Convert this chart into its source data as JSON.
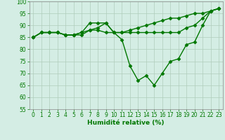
{
  "background_color": "#d4ede4",
  "grid_color": "#b0ccbb",
  "line_color": "#007700",
  "marker": "D",
  "markersize": 2.5,
  "linewidth": 1.0,
  "xlabel": "Humidité relative (%)",
  "xlabel_color": "#007700",
  "xlabel_fontsize": 6.5,
  "tick_color": "#007700",
  "tick_fontsize": 5.5,
  "ylim": [
    55,
    100
  ],
  "xlim": [
    -0.5,
    23.5
  ],
  "yticks": [
    55,
    60,
    65,
    70,
    75,
    80,
    85,
    90,
    95,
    100
  ],
  "xticks": [
    0,
    1,
    2,
    3,
    4,
    5,
    6,
    7,
    8,
    9,
    10,
    11,
    12,
    13,
    14,
    15,
    16,
    17,
    18,
    19,
    20,
    21,
    22,
    23
  ],
  "series": [
    [
      85,
      87,
      87,
      87,
      86,
      86,
      86,
      88,
      89,
      91,
      87,
      84,
      73,
      67,
      69,
      65,
      70,
      75,
      76,
      82,
      83,
      90,
      96,
      97
    ],
    [
      85,
      87,
      87,
      87,
      86,
      86,
      87,
      88,
      88,
      87,
      87,
      87,
      88,
      89,
      90,
      91,
      92,
      93,
      93,
      94,
      95,
      95,
      96,
      97
    ],
    [
      85,
      87,
      87,
      87,
      86,
      86,
      87,
      91,
      91,
      91,
      87,
      87,
      87,
      87,
      87,
      87,
      87,
      87,
      87,
      89,
      90,
      93,
      96,
      97
    ]
  ]
}
